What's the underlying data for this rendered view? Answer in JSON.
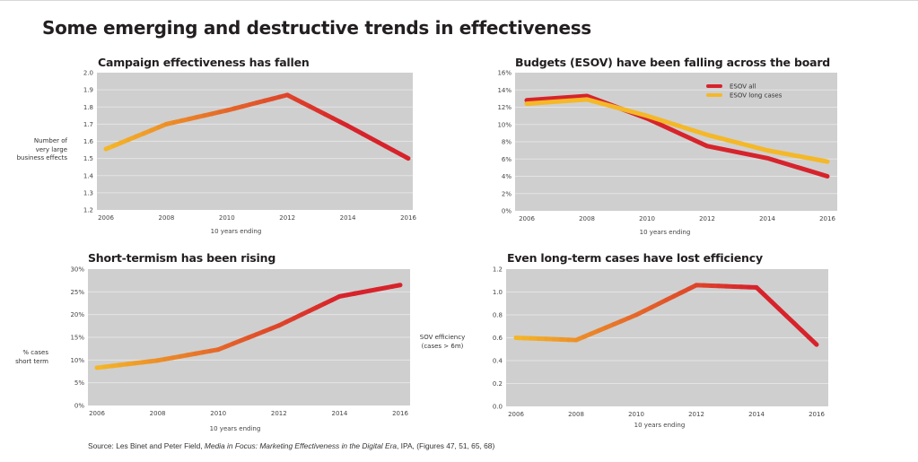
{
  "title": "Some emerging and destructive trends in effectiveness",
  "colors": {
    "red": "#d7232b",
    "orange": "#e5682a",
    "yellow": "#f4b828",
    "plot_bg": "#cfcfcf",
    "grid": "#e4e4e4"
  },
  "source": {
    "prefix": "Source: Les Binet and Peter Field, ",
    "italic": "Media in Focus: Marketing Effectiveness in the Digital Era",
    "suffix": ", IPA, (Figures 47, 51, 65, 68)"
  },
  "chart_data": [
    {
      "type": "line",
      "title": "Campaign effectiveness has fallen",
      "xlabel": "10 years ending",
      "ylabel": "Number of\nvery large\nbusiness effects",
      "x": [
        2006,
        2008,
        2010,
        2012,
        2014,
        2016
      ],
      "xticks": [
        "2006",
        "2008",
        "2010",
        "2012",
        "2014",
        "2016"
      ],
      "ylim": [
        1.2,
        2.0
      ],
      "yticks": [
        "1.2",
        "1.3",
        "1.4",
        "1.5",
        "1.6",
        "1.7",
        "1.8",
        "1.9",
        "2.0"
      ],
      "ytick_values": [
        1.2,
        1.3,
        1.4,
        1.5,
        1.6,
        1.7,
        1.8,
        1.9,
        2.0
      ],
      "grid": true,
      "series": [
        {
          "name": "Large business effects",
          "values": [
            1.555,
            1.7,
            1.78,
            1.87,
            1.69,
            1.5
          ],
          "style": "gradient"
        }
      ]
    },
    {
      "type": "line",
      "title": "Budgets (ESOV) have been falling across the board",
      "xlabel": "10 years ending",
      "ylabel": "",
      "x": [
        2006,
        2008,
        2010,
        2012,
        2014,
        2016
      ],
      "xticks": [
        "2006",
        "2008",
        "2010",
        "2012",
        "2014",
        "2016"
      ],
      "ylim": [
        0,
        16
      ],
      "yticks": [
        "0%",
        "2%",
        "4%",
        "6%",
        "8%",
        "10%",
        "12%",
        "14%",
        "16%"
      ],
      "ytick_values": [
        0,
        2,
        4,
        6,
        8,
        10,
        12,
        14,
        16
      ],
      "grid": true,
      "legend": "top-right",
      "series": [
        {
          "name": "ESOV all",
          "values": [
            12.8,
            13.3,
            10.7,
            7.5,
            6.1,
            4.0
          ],
          "color": "#d7232b"
        },
        {
          "name": "ESOV long cases",
          "values": [
            12.4,
            12.9,
            11.0,
            8.8,
            7.0,
            5.7
          ],
          "color": "#f4b828"
        }
      ]
    },
    {
      "type": "line",
      "title": "Short-termism has been rising",
      "xlabel": "10 years ending",
      "ylabel": "% cases\nshort term",
      "x": [
        2006,
        2008,
        2010,
        2012,
        2014,
        2016
      ],
      "xticks": [
        "2006",
        "2008",
        "2010",
        "2012",
        "2014",
        "2016"
      ],
      "ylim": [
        0,
        30
      ],
      "yticks": [
        "0%",
        "5%",
        "10%",
        "15%",
        "20%",
        "25%",
        "30%"
      ],
      "ytick_values": [
        0,
        5,
        10,
        15,
        20,
        25,
        30
      ],
      "grid": true,
      "series": [
        {
          "name": "% cases short term",
          "values": [
            8.3,
            9.9,
            12.3,
            17.6,
            24.0,
            26.5
          ],
          "style": "gradient"
        }
      ]
    },
    {
      "type": "line",
      "title": "Even long-term cases have lost efficiency",
      "xlabel": "10 years ending",
      "ylabel": "SOV efficiency\n(cases > 6m)",
      "x": [
        2006,
        2008,
        2010,
        2012,
        2014,
        2016
      ],
      "xticks": [
        "2006",
        "2008",
        "2010",
        "2012",
        "2014",
        "2016"
      ],
      "ylim": [
        0,
        1.2
      ],
      "yticks": [
        "0.0",
        "0.2",
        "0.4",
        "0.6",
        "0.8",
        "1.0",
        "1.2"
      ],
      "ytick_values": [
        0,
        0.2,
        0.4,
        0.6,
        0.8,
        1.0,
        1.2
      ],
      "grid": true,
      "series": [
        {
          "name": "SOV efficiency",
          "values": [
            0.6,
            0.58,
            0.8,
            1.06,
            1.04,
            0.54
          ],
          "style": "gradient"
        }
      ]
    }
  ]
}
